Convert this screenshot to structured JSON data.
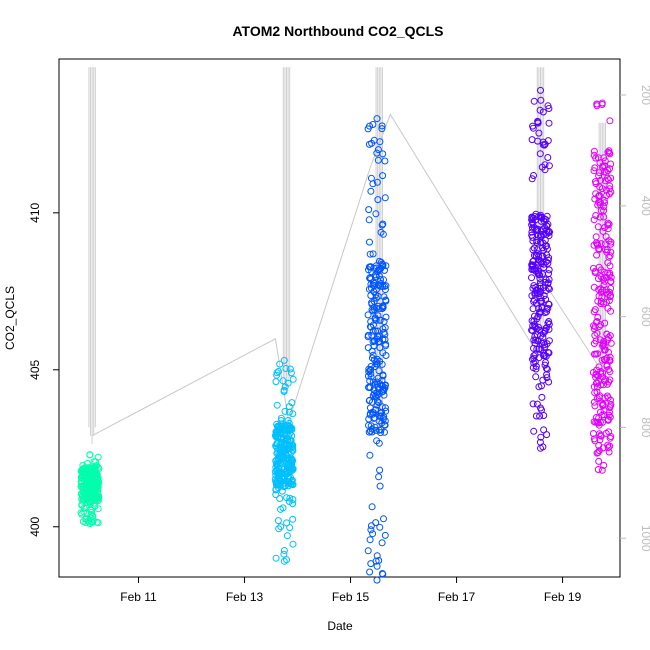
{
  "chart_data": {
    "type": "scatter",
    "title": "ATOM2 Northbound CO2_QCLS",
    "xlabel": "Date",
    "ylabel": "CO2_QCLS",
    "x_axis": {
      "type": "date",
      "range": [
        "2016-02-09T12:00",
        "2016-02-20T02:00"
      ],
      "ticks": [
        {
          "value": "2016-02-11",
          "label": "Feb 11"
        },
        {
          "value": "2016-02-13",
          "label": "Feb 13"
        },
        {
          "value": "2016-02-15",
          "label": "Feb 15"
        },
        {
          "value": "2016-02-17",
          "label": "Feb 17"
        },
        {
          "value": "2016-02-19",
          "label": "Feb 19"
        }
      ]
    },
    "y_axis": {
      "range": [
        398.4,
        414.9
      ],
      "ticks": [
        400,
        405,
        410
      ]
    },
    "y2_axis": {
      "range": [
        1070,
        135
      ],
      "ticks": [
        200,
        400,
        600,
        800,
        1000
      ],
      "color": "#bdbdbd"
    },
    "series": [
      {
        "color": "#00ffaa",
        "points": [
          {
            "x": "2016-02-10T02:00",
            "y_min": 400.1,
            "y_max": 402.3,
            "q1": 400.8,
            "q3": 401.9
          }
        ],
        "line_x": "2016-02-10T03:00",
        "line_y2": [
          150,
          830
        ]
      },
      {
        "color": "#00bfff",
        "points": [
          {
            "x": "2016-02-13T18:00",
            "y_min": 398.9,
            "y_max": 405.3,
            "q1": 401.3,
            "q3": 403.3
          }
        ],
        "line_x": "2016-02-13T19:00",
        "line_y2": [
          150,
          740
        ]
      },
      {
        "color": "#0055ff",
        "points": [
          {
            "x": "2016-02-15T12:00",
            "y_min": 398.3,
            "y_max": 413.0,
            "q1": 403.0,
            "q3": 408.5
          }
        ],
        "line_x": "2016-02-15T13:00",
        "line_y2": [
          150,
          810
        ]
      },
      {
        "color": "#5500ff",
        "points": [
          {
            "x": "2016-02-18T14:00",
            "y_min": 402.5,
            "y_max": 413.9,
            "q1": 405.0,
            "q3": 410.0
          }
        ],
        "line_x": "2016-02-18T14:00",
        "line_y2": [
          150,
          640
        ]
      },
      {
        "color": "#e000ff",
        "points": [
          {
            "x": "2016-02-19T18:00",
            "y_min": 401.8,
            "y_max": 413.5,
            "q1": 402.3,
            "q3": 412.0
          }
        ],
        "line_x": "2016-02-19T18:00",
        "line_y2": [
          250,
          700
        ]
      }
    ],
    "connector_line": [
      {
        "x": "2016-02-10T03:00",
        "y2": 815
      },
      {
        "x": "2016-02-13T14:00",
        "y2": 640
      },
      {
        "x": "2016-02-13T20:00",
        "y2": 790
      },
      {
        "x": "2016-02-15T09:00",
        "y2": 330
      },
      {
        "x": "2016-02-15T18:00",
        "y2": 235
      },
      {
        "x": "2016-02-18T10:00",
        "y2": 650
      },
      {
        "x": "2016-02-18T16:00",
        "y2": 540
      },
      {
        "x": "2016-02-19T18:00",
        "y2": 700
      }
    ],
    "grid": false,
    "legend": "none"
  }
}
